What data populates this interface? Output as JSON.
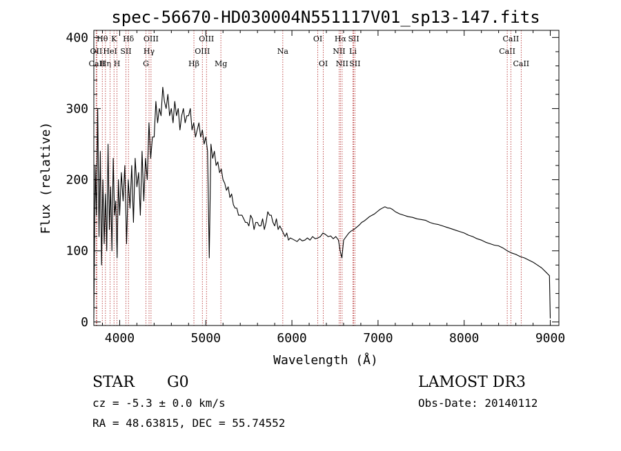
{
  "chart_data": {
    "type": "line",
    "title": "spec-56670-HD030004N551117V01_sp13-147.fits",
    "xlabel": "Wavelength (Å)",
    "ylabel": "Flux (relative)",
    "xlim": [
      3700,
      9100
    ],
    "ylim": [
      -5,
      410
    ],
    "x_ticks": [
      4000,
      5000,
      6000,
      7000,
      8000,
      9000
    ],
    "y_ticks": [
      0,
      100,
      200,
      300,
      400
    ],
    "grid": false,
    "series": [
      {
        "name": "flux",
        "x": [
          3700,
          3715,
          3730,
          3745,
          3760,
          3775,
          3790,
          3805,
          3820,
          3835,
          3850,
          3865,
          3880,
          3895,
          3910,
          3925,
          3940,
          3955,
          3970,
          3985,
          4000,
          4020,
          4040,
          4060,
          4080,
          4100,
          4120,
          4140,
          4160,
          4180,
          4200,
          4220,
          4240,
          4260,
          4280,
          4300,
          4320,
          4340,
          4360,
          4380,
          4400,
          4420,
          4440,
          4460,
          4480,
          4500,
          4520,
          4540,
          4560,
          4580,
          4600,
          4620,
          4640,
          4660,
          4680,
          4700,
          4720,
          4740,
          4760,
          4780,
          4800,
          4820,
          4840,
          4860,
          4880,
          4900,
          4920,
          4940,
          4960,
          4980,
          5000,
          5020,
          5040,
          5060,
          5080,
          5100,
          5120,
          5140,
          5160,
          5180,
          5200,
          5220,
          5240,
          5260,
          5280,
          5300,
          5320,
          5340,
          5360,
          5380,
          5400,
          5420,
          5440,
          5460,
          5480,
          5500,
          5520,
          5540,
          5560,
          5580,
          5600,
          5620,
          5640,
          5660,
          5680,
          5700,
          5720,
          5740,
          5760,
          5780,
          5800,
          5820,
          5840,
          5860,
          5880,
          5900,
          5920,
          5940,
          5960,
          5980,
          6000,
          6030,
          6060,
          6090,
          6120,
          6150,
          6180,
          6210,
          6240,
          6270,
          6300,
          6330,
          6360,
          6390,
          6420,
          6450,
          6480,
          6510,
          6540,
          6560,
          6580,
          6600,
          6630,
          6660,
          6690,
          6720,
          6750,
          6780,
          6810,
          6840,
          6870,
          6900,
          6930,
          6960,
          6990,
          7020,
          7050,
          7080,
          7110,
          7140,
          7170,
          7200,
          7250,
          7300,
          7350,
          7400,
          7450,
          7500,
          7550,
          7600,
          7650,
          7700,
          7750,
          7800,
          7850,
          7900,
          7950,
          8000,
          8050,
          8100,
          8150,
          8200,
          8250,
          8300,
          8350,
          8400,
          8450,
          8500,
          8550,
          8600,
          8650,
          8700,
          8750,
          8800,
          8850,
          8900,
          8950,
          8990,
          9000
        ],
        "y": [
          5,
          220,
          150,
          300,
          120,
          240,
          80,
          200,
          110,
          180,
          100,
          250,
          130,
          190,
          100,
          230,
          150,
          170,
          90,
          200,
          150,
          210,
          170,
          220,
          110,
          200,
          160,
          220,
          140,
          230,
          190,
          210,
          150,
          240,
          170,
          230,
          200,
          280,
          230,
          260,
          260,
          310,
          280,
          300,
          290,
          330,
          310,
          300,
          320,
          290,
          300,
          280,
          310,
          290,
          300,
          270,
          290,
          300,
          280,
          290,
          290,
          300,
          270,
          280,
          260,
          270,
          280,
          260,
          270,
          250,
          260,
          240,
          90,
          250,
          230,
          240,
          220,
          225,
          210,
          215,
          200,
          195,
          185,
          190,
          175,
          180,
          165,
          160,
          160,
          150,
          150,
          150,
          145,
          140,
          140,
          135,
          150,
          145,
          130,
          140,
          140,
          135,
          135,
          145,
          130,
          140,
          155,
          150,
          150,
          140,
          135,
          145,
          130,
          135,
          130,
          125,
          120,
          125,
          115,
          118,
          117,
          115,
          113,
          117,
          114,
          115,
          118,
          115,
          120,
          117,
          118,
          120,
          125,
          123,
          120,
          121,
          117,
          120,
          115,
          100,
          90,
          115,
          120,
          125,
          128,
          130,
          133,
          136,
          140,
          142,
          145,
          148,
          150,
          152,
          155,
          158,
          160,
          162,
          160,
          160,
          158,
          155,
          152,
          150,
          148,
          147,
          145,
          144,
          143,
          140,
          138,
          137,
          135,
          133,
          131,
          129,
          127,
          125,
          122,
          120,
          117,
          115,
          112,
          110,
          108,
          107,
          104,
          100,
          97,
          95,
          92,
          90,
          87,
          84,
          80,
          76,
          70,
          65,
          5
        ]
      }
    ],
    "line_markers": [
      {
        "label": "OII",
        "x": 3727,
        "row": 2
      },
      {
        "label": "CaII",
        "x": 3735,
        "row": 3
      },
      {
        "label": "Hθ",
        "x": 3798,
        "row": 1
      },
      {
        "label": "Hη",
        "x": 3835,
        "row": 3
      },
      {
        "label": "HeI",
        "x": 3889,
        "row": 2
      },
      {
        "label": "K",
        "x": 3934,
        "row": 1
      },
      {
        "label": "H",
        "x": 3969,
        "row": 3
      },
      {
        "label": "SII",
        "x": 4072,
        "row": 2
      },
      {
        "label": "Hδ",
        "x": 4102,
        "row": 1
      },
      {
        "label": "G",
        "x": 4305,
        "row": 3
      },
      {
        "label": "Hγ",
        "x": 4341,
        "row": 2
      },
      {
        "label": "OIII",
        "x": 4364,
        "row": 1
      },
      {
        "label": "Hβ",
        "x": 4862,
        "row": 3
      },
      {
        "label": "OIII",
        "x": 4960,
        "row": 2
      },
      {
        "label": "OIII",
        "x": 5008,
        "row": 1
      },
      {
        "label": "Mg",
        "x": 5175,
        "row": 3
      },
      {
        "label": "Na",
        "x": 5894,
        "row": 2
      },
      {
        "label": "OI",
        "x": 6300,
        "row": 1
      },
      {
        "label": "OI",
        "x": 6364,
        "row": 3
      },
      {
        "label": "NII",
        "x": 6548,
        "row": 2
      },
      {
        "label": "Hα",
        "x": 6563,
        "row": 1
      },
      {
        "label": "NII",
        "x": 6583,
        "row": 3
      },
      {
        "label": "Li",
        "x": 6708,
        "row": 2
      },
      {
        "label": "SII",
        "x": 6717,
        "row": 1
      },
      {
        "label": "SII",
        "x": 6731,
        "row": 3
      },
      {
        "label": "CaII",
        "x": 8500,
        "row": 2
      },
      {
        "label": "CaII",
        "x": 8542,
        "row": 1
      },
      {
        "label": "CaII",
        "x": 8662,
        "row": 3
      }
    ],
    "colors": {
      "line": "#000000",
      "axes": "#000000",
      "markers": "#b02020"
    }
  },
  "info": {
    "obj_class": "STAR",
    "subclass": "G0",
    "survey": "LAMOST DR3",
    "cz": "cz =  -5.3 ± 0.0 km/s",
    "obs_date": "Obs-Date: 20140112",
    "coords": "RA =  48.63815, DEC =  55.74552"
  }
}
